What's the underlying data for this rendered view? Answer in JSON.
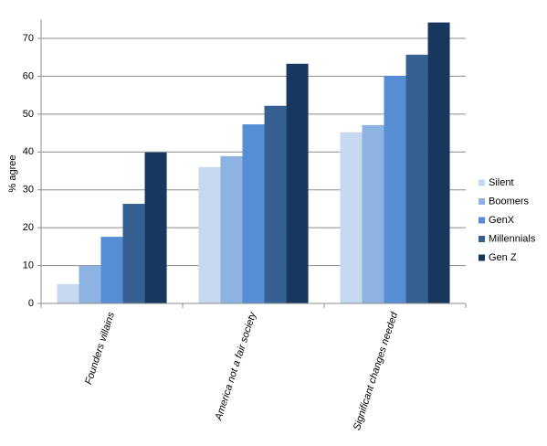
{
  "chart_data": {
    "type": "bar",
    "y_label": "% agree",
    "categories": [
      "Founders villains",
      "America not a fair society",
      "Significant changes needed"
    ],
    "series": [
      {
        "name": "Silent",
        "color": "#c6d9f1",
        "values": [
          5.1,
          36,
          45.2
        ]
      },
      {
        "name": "Boomers",
        "color": "#8db3e2",
        "values": [
          9.9,
          38.9,
          47.1
        ]
      },
      {
        "name": "GenX",
        "color": "#558ed5",
        "values": [
          17.6,
          47.3,
          60.1
        ]
      },
      {
        "name": "Millennials",
        "color": "#366092",
        "values": [
          26.3,
          52.2,
          65.7
        ]
      },
      {
        "name": "Gen Z",
        "color": "#17375e",
        "values": [
          39.9,
          63.3,
          74.2
        ]
      }
    ],
    "ylim": [
      0,
      75
    ],
    "yticks": [
      0,
      10,
      20,
      30,
      40,
      50,
      60,
      70
    ],
    "grid": true,
    "legend": "right"
  }
}
